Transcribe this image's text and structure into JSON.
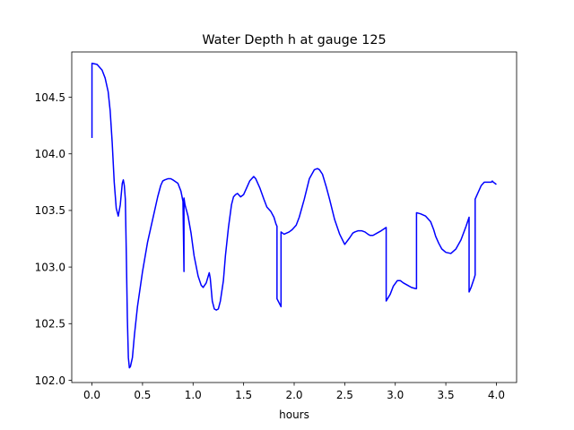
{
  "chart_data": {
    "type": "line",
    "title": "Water Depth h at gauge 125",
    "xlabel": "hours",
    "ylabel": "",
    "xlim": [
      -0.2,
      4.2
    ],
    "ylim": [
      101.98,
      104.9
    ],
    "grid": false,
    "legend": "none",
    "xticks": [
      0.0,
      0.5,
      1.0,
      1.5,
      2.0,
      2.5,
      3.0,
      3.5,
      4.0
    ],
    "xtick_labels": [
      "0.0",
      "0.5",
      "1.0",
      "1.5",
      "2.0",
      "2.5",
      "3.0",
      "3.5",
      "4.0"
    ],
    "yticks": [
      102.0,
      102.5,
      103.0,
      103.5,
      104.0,
      104.5
    ],
    "ytick_labels": [
      "102.0",
      "102.5",
      "103.0",
      "103.5",
      "104.0",
      "104.5"
    ],
    "series": [
      {
        "color": "#0000ff",
        "x": [
          0.0,
          0.0,
          0.0,
          0.0,
          0.05,
          0.1,
          0.13,
          0.16,
          0.18,
          0.2,
          0.22,
          0.24,
          0.26,
          0.28,
          0.3,
          0.31,
          0.32,
          0.33,
          0.34,
          0.35,
          0.36,
          0.37,
          0.38,
          0.4,
          0.42,
          0.45,
          0.5,
          0.55,
          0.6,
          0.62,
          0.65,
          0.68,
          0.7,
          0.72,
          0.75,
          0.78,
          0.8,
          0.85,
          0.88,
          0.9,
          0.91,
          0.91,
          0.92,
          0.95,
          0.98,
          1.01,
          1.05,
          1.08,
          1.1,
          1.13,
          1.15,
          1.16,
          1.17,
          1.19,
          1.21,
          1.23,
          1.25,
          1.27,
          1.3,
          1.32,
          1.35,
          1.38,
          1.4,
          1.42,
          1.44,
          1.47,
          1.5,
          1.53,
          1.56,
          1.6,
          1.62,
          1.66,
          1.7,
          1.73,
          1.77,
          1.8,
          1.82,
          1.83,
          1.83,
          1.87,
          1.87,
          1.9,
          1.95,
          1.98,
          2.02,
          2.05,
          2.1,
          2.15,
          2.2,
          2.23,
          2.25,
          2.28,
          2.3,
          2.32,
          2.35,
          2.4,
          2.45,
          2.5,
          2.55,
          2.58,
          2.6,
          2.63,
          2.67,
          2.7,
          2.73,
          2.75,
          2.78,
          2.82,
          2.86,
          2.91,
          2.91,
          2.95,
          2.98,
          3.02,
          3.05,
          3.08,
          3.12,
          3.16,
          3.2,
          3.21,
          3.21,
          3.25,
          3.3,
          3.35,
          3.38,
          3.4,
          3.43,
          3.46,
          3.5,
          3.55,
          3.6,
          3.65,
          3.7,
          3.73,
          3.73,
          3.75,
          3.78,
          3.79,
          3.79,
          3.82,
          3.85,
          3.88,
          3.92,
          3.95,
          3.96,
          3.97,
          4.0
        ],
        "y": [
          104.14,
          104.6,
          104.68,
          104.8,
          104.79,
          104.74,
          104.67,
          104.55,
          104.38,
          104.1,
          103.75,
          103.52,
          103.45,
          103.55,
          103.74,
          103.77,
          103.72,
          103.6,
          103.1,
          102.55,
          102.2,
          102.11,
          102.12,
          102.2,
          102.4,
          102.65,
          102.96,
          103.22,
          103.42,
          103.5,
          103.62,
          103.72,
          103.76,
          103.77,
          103.78,
          103.78,
          103.77,
          103.74,
          103.67,
          103.58,
          102.96,
          103.61,
          103.55,
          103.45,
          103.3,
          103.1,
          102.92,
          102.84,
          102.82,
          102.86,
          102.92,
          102.95,
          102.9,
          102.7,
          102.63,
          102.62,
          102.63,
          102.7,
          102.88,
          103.1,
          103.35,
          103.55,
          103.62,
          103.64,
          103.65,
          103.62,
          103.64,
          103.7,
          103.76,
          103.8,
          103.78,
          103.7,
          103.6,
          103.53,
          103.49,
          103.44,
          103.38,
          103.36,
          102.72,
          102.65,
          103.31,
          103.29,
          103.31,
          103.33,
          103.37,
          103.44,
          103.6,
          103.78,
          103.86,
          103.87,
          103.86,
          103.82,
          103.76,
          103.7,
          103.6,
          103.42,
          103.29,
          103.2,
          103.26,
          103.3,
          103.31,
          103.32,
          103.32,
          103.31,
          103.29,
          103.28,
          103.28,
          103.3,
          103.32,
          103.35,
          102.7,
          102.76,
          102.83,
          102.88,
          102.88,
          102.86,
          102.84,
          102.82,
          102.81,
          102.81,
          103.48,
          103.47,
          103.45,
          103.4,
          103.33,
          103.27,
          103.21,
          103.16,
          103.13,
          103.12,
          103.16,
          103.24,
          103.36,
          103.44,
          102.78,
          102.82,
          102.9,
          102.93,
          103.6,
          103.66,
          103.72,
          103.75,
          103.75,
          103.75,
          103.76,
          103.75,
          103.73
        ]
      }
    ]
  }
}
